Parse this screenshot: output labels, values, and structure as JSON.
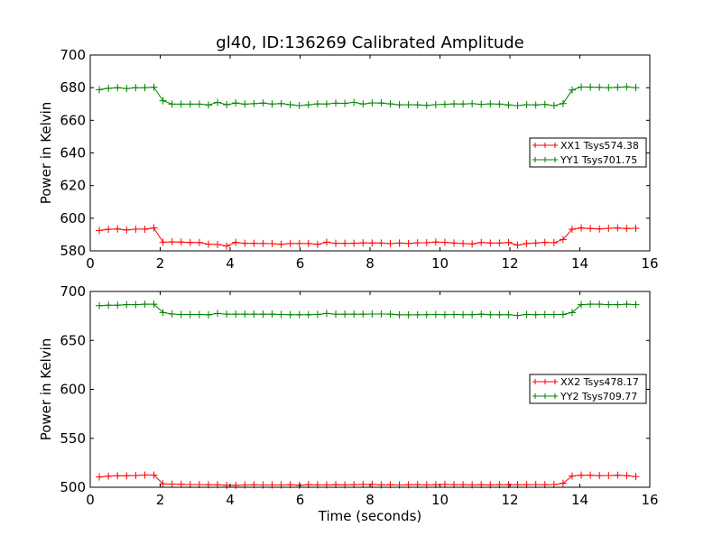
{
  "chart_data": [
    {
      "type": "line",
      "title": "gl40, ID:136269 Calibrated Amplitude",
      "xlabel": "",
      "ylabel": "Power in Kelvin",
      "xlim": [
        0,
        16
      ],
      "ylim": [
        580,
        700
      ],
      "xticks": [
        0,
        2,
        4,
        6,
        8,
        10,
        12,
        14,
        16
      ],
      "yticks": [
        580,
        600,
        620,
        640,
        660,
        680,
        700
      ],
      "legend_position": "center-right",
      "x": [
        0.26,
        0.52,
        0.78,
        1.04,
        1.3,
        1.56,
        1.82,
        2.08,
        2.34,
        2.6,
        2.86,
        3.12,
        3.38,
        3.64,
        3.9,
        4.16,
        4.42,
        4.68,
        4.94,
        5.2,
        5.46,
        5.72,
        5.98,
        6.24,
        6.5,
        6.76,
        7.02,
        7.28,
        7.54,
        7.8,
        8.06,
        8.32,
        8.58,
        8.84,
        9.1,
        9.36,
        9.62,
        9.88,
        10.14,
        10.4,
        10.66,
        10.92,
        11.18,
        11.44,
        11.7,
        11.96,
        12.22,
        12.48,
        12.74,
        13.0,
        13.26,
        13.52,
        13.78,
        14.04,
        14.3,
        14.56,
        14.82,
        15.08,
        15.34,
        15.6
      ],
      "series": [
        {
          "name": "XX1 Tsys574.38",
          "color": "#ff0000",
          "values": [
            592.5,
            593.2,
            593.4,
            592.8,
            593.3,
            593.3,
            594.0,
            585.3,
            585.5,
            585.4,
            585.1,
            585.1,
            584.1,
            583.9,
            583.0,
            585.2,
            584.6,
            584.6,
            584.5,
            584.4,
            584.0,
            584.5,
            584.5,
            584.5,
            584.0,
            585.3,
            584.6,
            584.6,
            584.6,
            584.9,
            584.8,
            584.8,
            584.4,
            584.8,
            584.5,
            584.9,
            585.0,
            585.4,
            585.2,
            584.8,
            584.5,
            584.2,
            585.1,
            584.8,
            584.8,
            585.1,
            583.5,
            584.5,
            584.8,
            585.2,
            585.0,
            587.0,
            593.3,
            594.0,
            593.7,
            593.4,
            593.8,
            594.0,
            593.7,
            593.8
          ]
        },
        {
          "name": "YY1 Tsys701.75",
          "color": "#008000",
          "values": [
            678.8,
            679.6,
            680.0,
            679.5,
            680.0,
            680.0,
            680.3,
            672.0,
            669.9,
            669.9,
            669.9,
            669.9,
            669.4,
            671.0,
            669.6,
            670.6,
            669.9,
            670.2,
            670.6,
            670.0,
            670.3,
            669.6,
            669.0,
            669.5,
            670.1,
            670.0,
            670.5,
            670.4,
            671.0,
            670.0,
            670.7,
            670.6,
            670.1,
            669.5,
            669.6,
            669.5,
            669.2,
            669.6,
            669.8,
            670.1,
            670.0,
            670.2,
            669.8,
            670.1,
            669.9,
            669.4,
            669.0,
            669.6,
            669.4,
            669.8,
            669.0,
            670.3,
            678.6,
            680.4,
            680.3,
            680.2,
            680.0,
            680.2,
            680.5,
            680.0
          ]
        }
      ]
    },
    {
      "type": "line",
      "title": "",
      "xlabel": "Time (seconds)",
      "ylabel": "Power in Kelvin",
      "xlim": [
        0,
        16
      ],
      "ylim": [
        500,
        700
      ],
      "xticks": [
        0,
        2,
        4,
        6,
        8,
        10,
        12,
        14,
        16
      ],
      "yticks": [
        500,
        550,
        600,
        650,
        700
      ],
      "legend_position": "center-right",
      "x": [
        0.26,
        0.52,
        0.78,
        1.04,
        1.3,
        1.56,
        1.82,
        2.08,
        2.34,
        2.6,
        2.86,
        3.12,
        3.38,
        3.64,
        3.9,
        4.16,
        4.42,
        4.68,
        4.94,
        5.2,
        5.46,
        5.72,
        5.98,
        6.24,
        6.5,
        6.76,
        7.02,
        7.28,
        7.54,
        7.8,
        8.06,
        8.32,
        8.58,
        8.84,
        9.1,
        9.36,
        9.62,
        9.88,
        10.14,
        10.4,
        10.66,
        10.92,
        11.18,
        11.44,
        11.7,
        11.96,
        12.22,
        12.48,
        12.74,
        13.0,
        13.26,
        13.52,
        13.78,
        14.04,
        14.3,
        14.56,
        14.82,
        15.08,
        15.34,
        15.6
      ],
      "series": [
        {
          "name": "XX2 Tsys478.17",
          "color": "#ff0000",
          "values": [
            510.5,
            511.3,
            511.8,
            511.8,
            512.0,
            512.5,
            512.5,
            503.5,
            503.2,
            503.0,
            502.8,
            502.8,
            502.5,
            502.5,
            502.0,
            502.0,
            502.3,
            502.5,
            502.3,
            502.3,
            502.3,
            502.5,
            502.0,
            502.6,
            502.4,
            502.4,
            502.6,
            502.4,
            502.6,
            502.9,
            502.9,
            502.4,
            502.5,
            502.3,
            502.5,
            502.7,
            502.4,
            502.6,
            502.9,
            502.6,
            502.6,
            502.4,
            502.6,
            502.4,
            502.6,
            502.6,
            502.6,
            502.6,
            502.8,
            502.6,
            502.8,
            504.0,
            511.5,
            512.3,
            512.3,
            511.9,
            512.0,
            512.3,
            511.9,
            511.0
          ]
        },
        {
          "name": "YY2 Tsys709.77",
          "color": "#008000",
          "values": [
            685.5,
            686.0,
            686.0,
            686.5,
            686.5,
            687.0,
            687.0,
            678.5,
            677.0,
            676.5,
            676.5,
            676.5,
            676.2,
            677.5,
            676.8,
            676.8,
            676.8,
            676.8,
            676.8,
            676.8,
            676.5,
            676.3,
            676.3,
            676.3,
            676.5,
            677.5,
            676.8,
            676.8,
            676.8,
            676.8,
            677.0,
            677.0,
            676.9,
            676.1,
            676.1,
            676.1,
            676.3,
            676.5,
            676.3,
            676.5,
            676.3,
            676.3,
            676.8,
            676.3,
            676.3,
            676.3,
            675.5,
            676.5,
            676.3,
            676.5,
            676.5,
            676.5,
            678.5,
            686.5,
            687.0,
            687.0,
            686.5,
            686.5,
            687.0,
            686.5
          ]
        }
      ]
    }
  ]
}
